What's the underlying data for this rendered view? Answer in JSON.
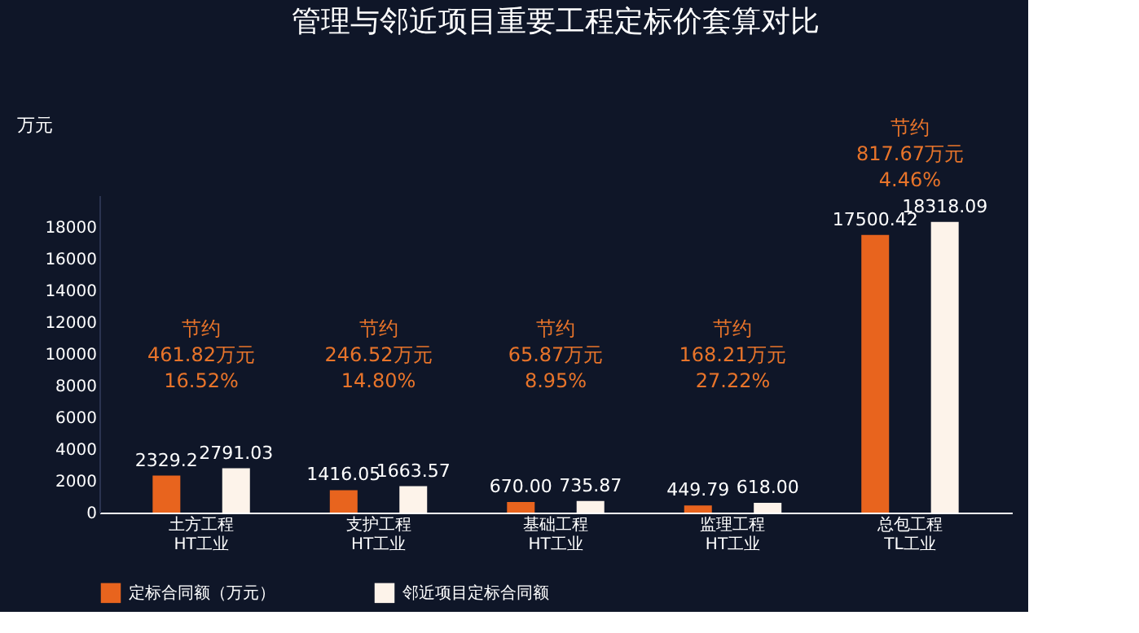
{
  "chart_data": {
    "type": "bar",
    "title": "管理与邻近项目重要工程定标价套算对比",
    "ylabel": "万元",
    "categories": [
      "土方工程\nHT工业",
      "支护工程\nHT工业",
      "基础工程\nHT工业",
      "监理工程\nHT工业",
      "总包工程\nTL工业"
    ],
    "series": [
      {
        "name": "定标合同额（万元）",
        "color": "#e8641e",
        "values": [
          2329.2,
          1416.05,
          670.0,
          449.79,
          17500.42
        ],
        "value_labels": [
          "2329.2",
          "1416.05",
          "670.00",
          "449.79",
          "17500.42"
        ]
      },
      {
        "name": "邻近项目定标合同额",
        "color": "#fdf3ea",
        "values": [
          2791.03,
          1663.57,
          735.87,
          618.0,
          18318.09
        ],
        "value_labels": [
          "2791.03",
          "1663.57",
          "735.87",
          "618.00",
          "18318.09"
        ]
      }
    ],
    "ylim": [
      0,
      20000
    ],
    "yticks": [
      0,
      2000,
      4000,
      6000,
      8000,
      10000,
      12000,
      14000,
      16000,
      18000
    ],
    "grid": false,
    "legend": "bottom",
    "annotations": [
      "节约\n461.82万元\n16.52%",
      "节约\n246.52万元\n14.80%",
      "节约\n65.87万元\n8.95%",
      "节约\n168.21万元\n27.22%",
      "节约\n817.67万元\n4.46%"
    ]
  }
}
